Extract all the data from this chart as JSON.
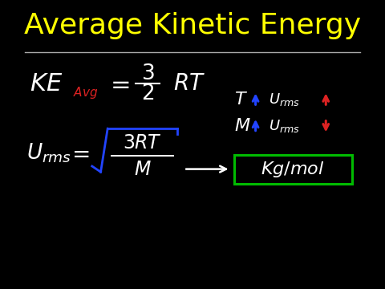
{
  "background_color": "#000000",
  "title": "Average Kinetic Energy",
  "title_color": "#FFFF00",
  "title_fontsize": 26,
  "line_color": "#aaaaaa",
  "white_color": "#FFFFFF",
  "red_color": "#DD2222",
  "blue_color": "#2244FF",
  "green_color": "#00BB00",
  "orange_color": "#FF8C00"
}
